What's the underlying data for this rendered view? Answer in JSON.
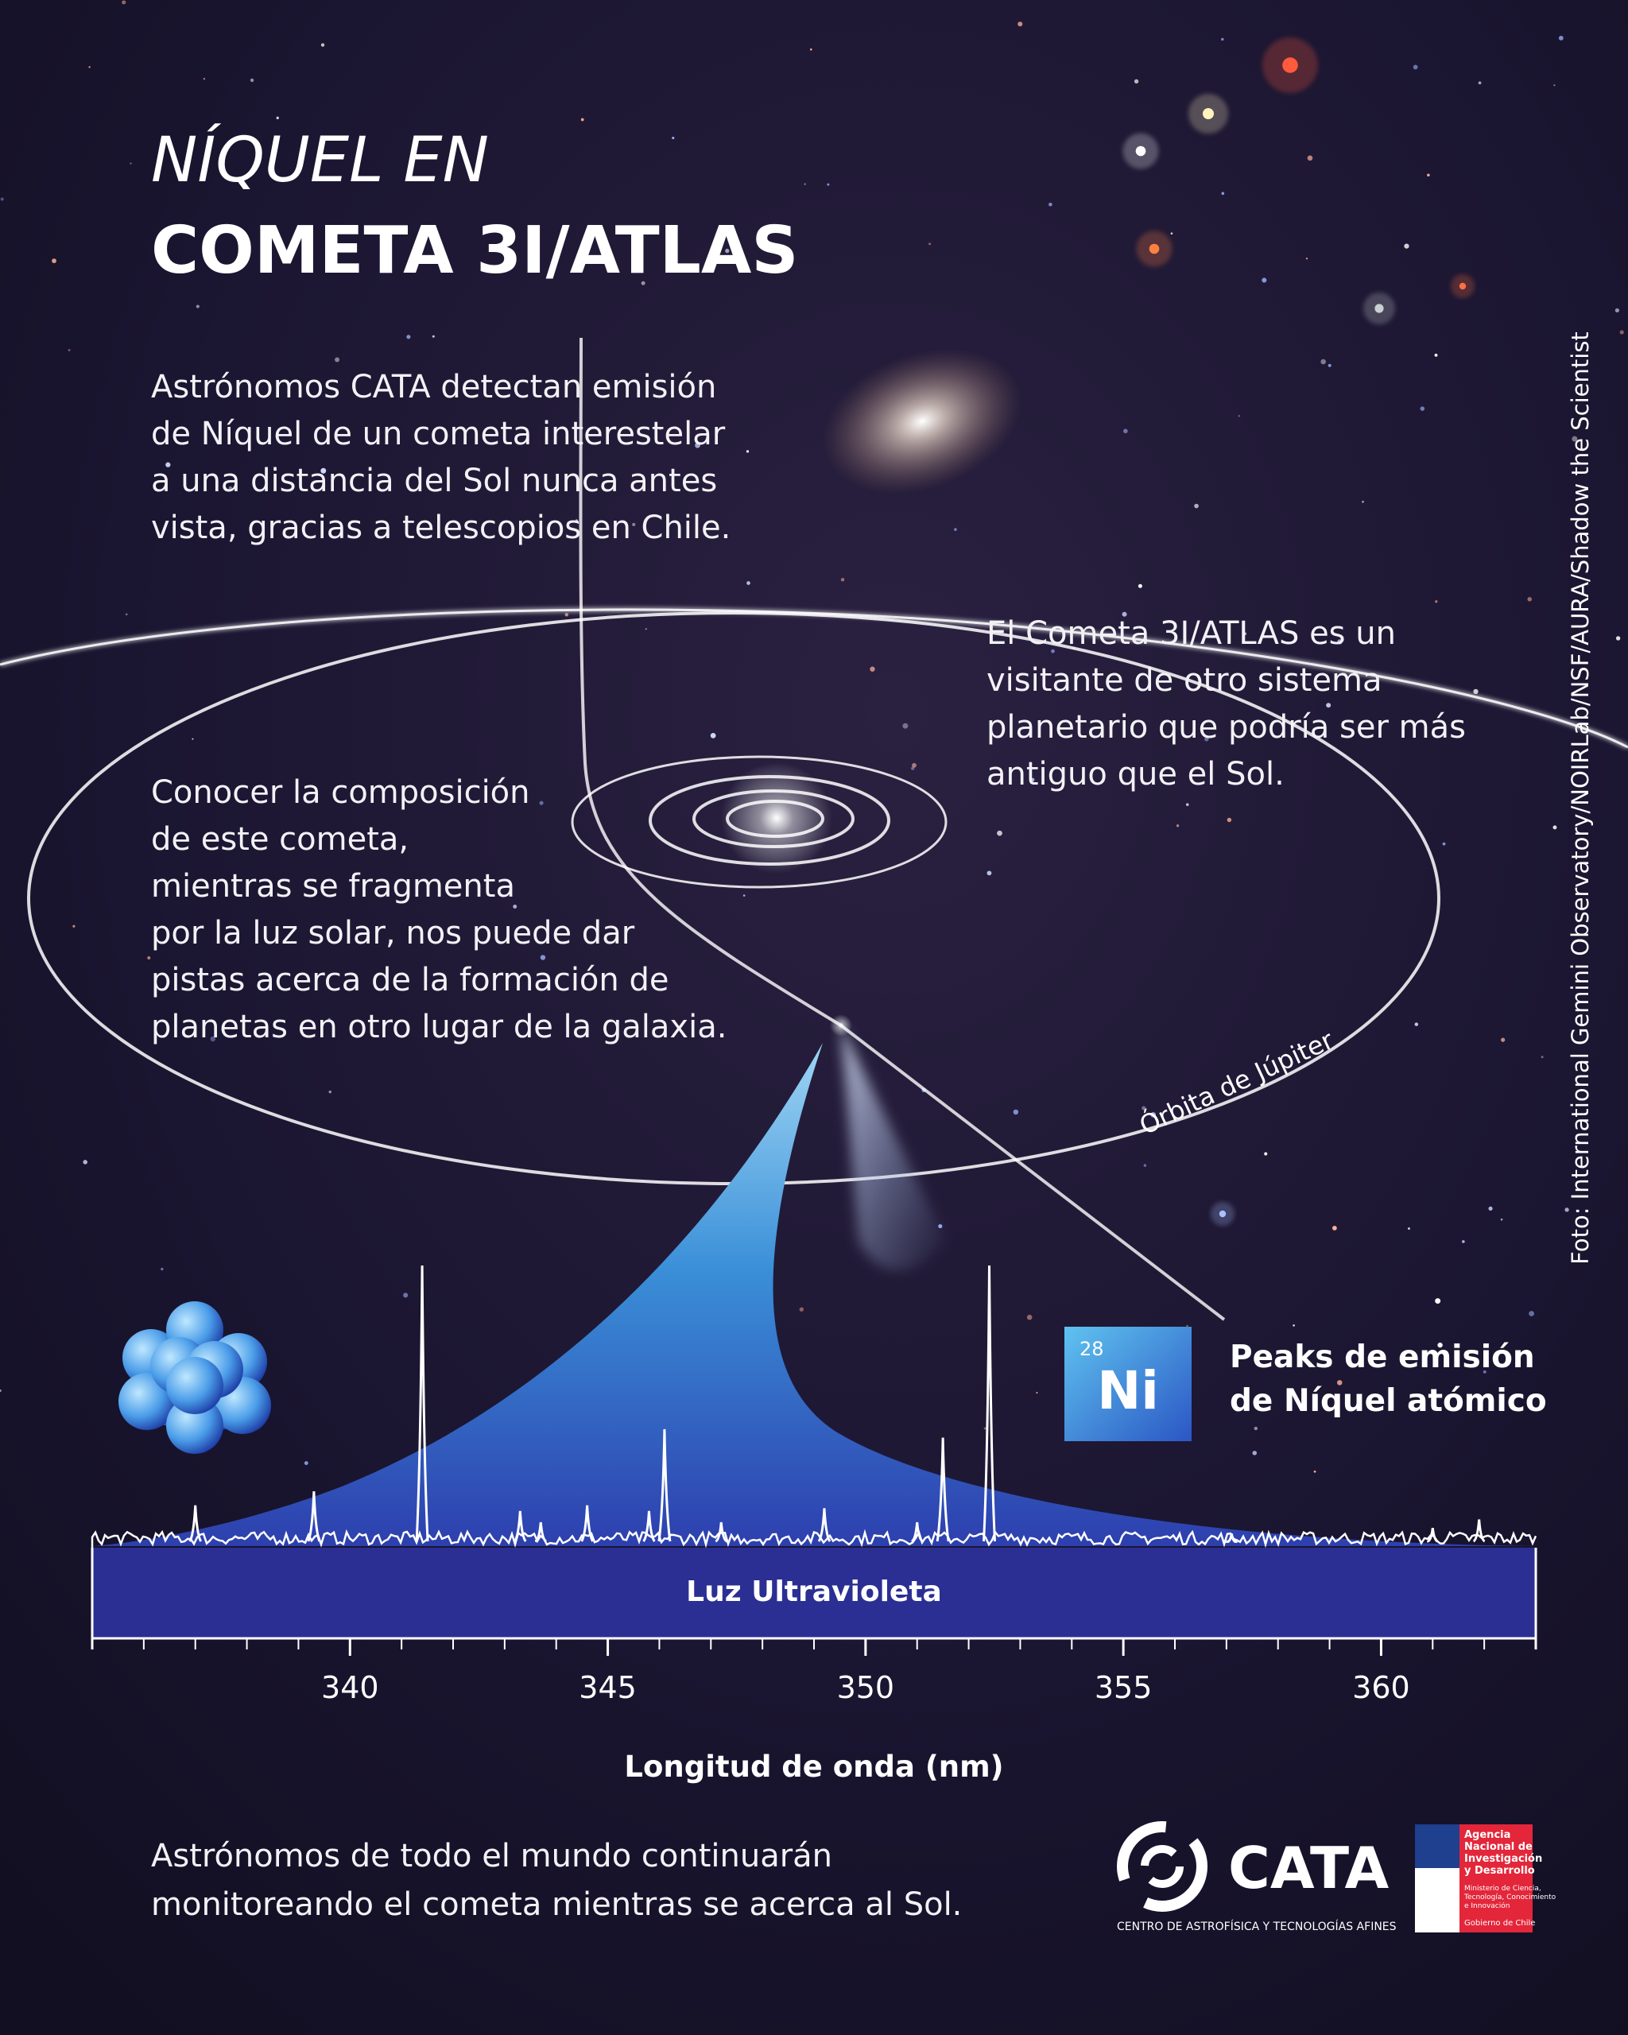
{
  "title": {
    "line1": "NÍQUEL EN",
    "line2": "COMETA 3I/ATLAS"
  },
  "intro": [
    "Astrónomos CATA detectan emisión",
    "de Níquel de un cometa interestelar",
    "a una distancia del Sol nunca antes",
    "vista, gracias a telescopios en Chile."
  ],
  "visitor_text": [
    "El Cometa 3I/ATLAS es un",
    "visitante de otro sistema",
    "planetario que podría ser más",
    "antiguo que el Sol."
  ],
  "composition_text": [
    "Conocer la composición",
    "de este cometa,",
    "mientras se fragmenta",
    "por la luz solar, nos puede dar",
    "pistas acerca de la formación de",
    "planetas en otro lugar de la galaxia."
  ],
  "orbit_label": "Órbita de Júpiter",
  "photo_credit": "Foto: International Gemini Observatory/NOIRLab/NSF/AURA/Shadow the Scientist",
  "element": {
    "number": 28,
    "symbol": "Ni"
  },
  "peaks_label": [
    "Peaks de emisión",
    "de Níquel atómico"
  ],
  "spectrum": {
    "band_label": "Luz Ultravioleta",
    "xlabel": "Longitud de onda (nm)",
    "xlim": [
      335,
      363
    ],
    "xticks": [
      340,
      345,
      350,
      355,
      360
    ],
    "minor_xticks": [
      336,
      337,
      338,
      339,
      341,
      342,
      343,
      344,
      346,
      347,
      348,
      349,
      351,
      352,
      353,
      354,
      356,
      357,
      358,
      359,
      361,
      362
    ],
    "peaks": {
      "x": [
        337.0,
        339.3,
        341.4,
        343.3,
        343.7,
        344.6,
        345.8,
        346.1,
        347.2,
        349.2,
        351.0,
        351.5,
        352.4,
        357.1,
        361.0,
        361.9
      ],
      "intensity": [
        15,
        20,
        100,
        13,
        9,
        15,
        13,
        42,
        9,
        14,
        9,
        39,
        100,
        5,
        7,
        10
      ]
    }
  },
  "footer_text": [
    "Astrónomos de todo el mundo continuarán",
    "monitoreando el cometa mientras se acerca al Sol."
  ],
  "logo": {
    "name": "CATA",
    "subtitle": "CENTRO DE ASTROFÍSICA Y TECNOLOGÍAS AFINES"
  },
  "gov_logo": {
    "agency": [
      "Agencia",
      "Nacional de",
      "Investigación",
      "y Desarrollo"
    ],
    "ministry": [
      "Ministerio de Ciencia,",
      "Tecnología, Conocimiento",
      "e Innovación"
    ],
    "government": "Gobierno de Chile"
  }
}
